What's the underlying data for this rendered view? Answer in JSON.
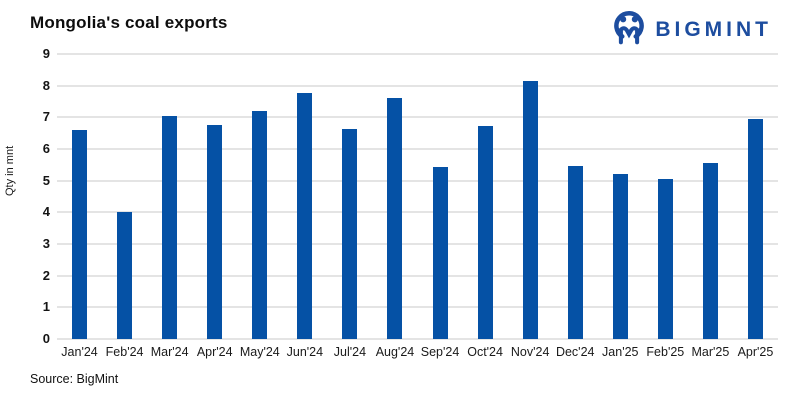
{
  "header": {
    "title": "Mongolia's coal exports",
    "brand_name": "BIGMINT",
    "brand_icon": "bigmint-logo-icon"
  },
  "footer": {
    "source": "Source: BigMint"
  },
  "colors": {
    "bar": "#0551a5",
    "brand_blue": "#1d4d9f",
    "gridline": "#e4e4e4",
    "text": "#0d0d0d"
  },
  "chart_data": {
    "type": "bar",
    "title": "Mongolia's coal exports",
    "categories": [
      "Jan'24",
      "Feb'24",
      "Mar'24",
      "Apr'24",
      "May'24",
      "Jun'24",
      "Jul'24",
      "Aug'24",
      "Sep'24",
      "Oct'24",
      "Nov'24",
      "Dec'24",
      "Jan'25",
      "Feb'25",
      "Mar'25",
      "Apr'25"
    ],
    "values": [
      6.6,
      4.0,
      7.05,
      6.75,
      7.2,
      7.78,
      6.62,
      7.6,
      5.42,
      6.73,
      8.15,
      5.47,
      5.2,
      5.05,
      5.55,
      6.95
    ],
    "xlabel": "",
    "ylabel": "Qty in mnt",
    "ylim": [
      0,
      9
    ],
    "yticks": [
      0,
      1,
      2,
      3,
      4,
      5,
      6,
      7,
      8,
      9
    ],
    "grid": true,
    "legend": false
  }
}
